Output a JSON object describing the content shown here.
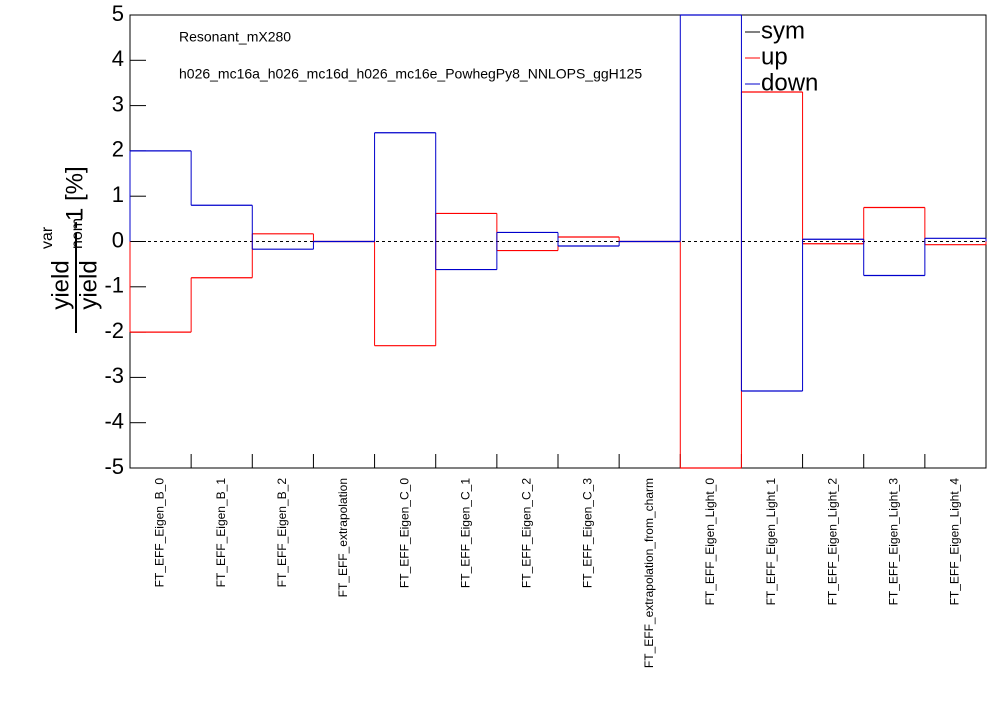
{
  "chart_data": {
    "type": "step",
    "annotations": [
      "Resonant_mX280",
      "h026_mc16a_h026_mc16d_h026_mc16e_PowhegPy8_NNLOPS_ggH125"
    ],
    "y_label": {
      "num": "yield",
      "num_sup": "var",
      "den": "yield",
      "den_sup": "nom",
      "suffix": "-1 [%]"
    },
    "categories": [
      "FT_EFF_Eigen_B_0",
      "FT_EFF_Eigen_B_1",
      "FT_EFF_Eigen_B_2",
      "FT_EFF_extrapolation",
      "FT_EFF_Eigen_C_0",
      "FT_EFF_Eigen_C_1",
      "FT_EFF_Eigen_C_2",
      "FT_EFF_Eigen_C_3",
      "FT_EFF_extrapolation_from_charm",
      "FT_EFF_Eigen_Light_0",
      "FT_EFF_Eigen_Light_1",
      "FT_EFF_Eigen_Light_2",
      "FT_EFF_Eigen_Light_3",
      "FT_EFF_Eigen_Light_4"
    ],
    "series": [
      {
        "name": "sym",
        "color": "#000000"
      },
      {
        "name": "up",
        "color": "#ff0000",
        "values": [
          -2,
          -0.8,
          0.17,
          0,
          -2.3,
          0.62,
          -0.2,
          0.1,
          0,
          -5,
          3.3,
          -0.05,
          0.75,
          -0.07
        ]
      },
      {
        "name": "down",
        "color": "#0000cc",
        "values": [
          2,
          0.8,
          -0.17,
          0,
          2.4,
          -0.62,
          0.2,
          -0.1,
          0,
          5,
          -3.3,
          0.05,
          -0.75,
          0.07
        ]
      }
    ],
    "ylim": [
      -5,
      5
    ],
    "yticks": [
      -5,
      -4,
      -3,
      -2,
      -1,
      0,
      1,
      2,
      3,
      4,
      5
    ],
    "reference_line": 0
  }
}
